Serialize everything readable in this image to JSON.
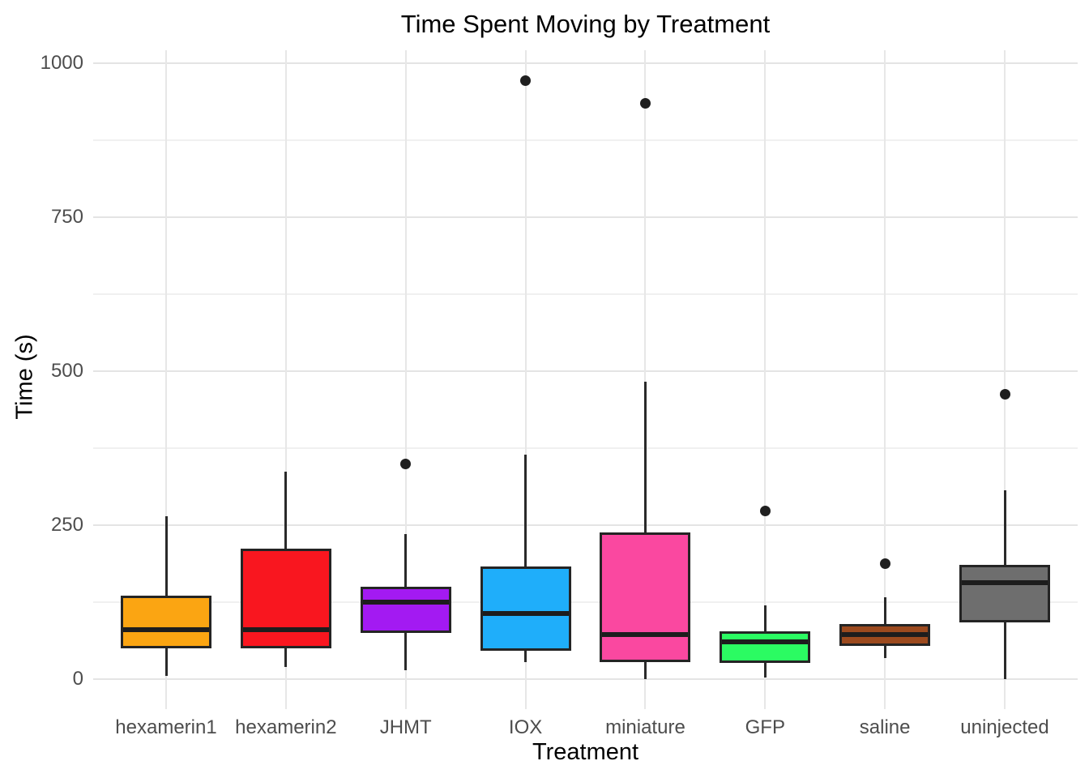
{
  "chart_data": {
    "type": "boxplot",
    "title": "Time Spent Moving by Treatment",
    "xlabel": "Treatment",
    "ylabel": "Time (s)",
    "ylim": [
      0,
      1000
    ],
    "yticks": [
      0,
      250,
      500,
      750,
      1000
    ],
    "yticks_minor": [
      125,
      375,
      625,
      875
    ],
    "grid": "horizontal major+minor lines, vertical major line per category, no panel border",
    "legend": "none",
    "categories": [
      "hexamerin1",
      "hexamerin2",
      "JHMT",
      "IOX",
      "miniature",
      "GFP",
      "saline",
      "uninjected"
    ],
    "series": [
      {
        "category": "hexamerin1",
        "fill": "#FBA512",
        "whisker_low": 5,
        "q1": 50,
        "median": 80,
        "q3": 135,
        "whisker_high": 265,
        "outliers": []
      },
      {
        "category": "hexamerin2",
        "fill": "#F9161F",
        "whisker_low": 20,
        "q1": 50,
        "median": 80,
        "q3": 212,
        "whisker_high": 337,
        "outliers": []
      },
      {
        "category": "JHMT",
        "fill": "#A31AF2",
        "whisker_low": 15,
        "q1": 75,
        "median": 125,
        "q3": 150,
        "whisker_high": 235,
        "outliers": [
          350
        ]
      },
      {
        "category": "IOX",
        "fill": "#1FAEFA",
        "whisker_low": 27,
        "q1": 46,
        "median": 107,
        "q3": 183,
        "whisker_high": 364,
        "outliers": [
          972
        ]
      },
      {
        "category": "miniature",
        "fill": "#FA48A0",
        "whisker_low": 0,
        "q1": 28,
        "median": 72,
        "q3": 238,
        "whisker_high": 483,
        "outliers": [
          935
        ]
      },
      {
        "category": "GFP",
        "fill": "#2BFB62",
        "whisker_low": 2,
        "q1": 26,
        "median": 60,
        "q3": 77,
        "whisker_high": 120,
        "outliers": [
          273
        ]
      },
      {
        "category": "saline",
        "fill": "#9C4A1E",
        "whisker_low": 34,
        "q1": 54,
        "median": 72,
        "q3": 90,
        "whisker_high": 133,
        "outliers": [
          188
        ]
      },
      {
        "category": "uninjected",
        "fill": "#6E6E6E",
        "whisker_low": 0,
        "q1": 92,
        "median": 157,
        "q3": 186,
        "whisker_high": 307,
        "outliers": [
          462
        ]
      }
    ]
  },
  "style": {
    "background": "#FFFFFF",
    "grid_major": "#E4E4E4",
    "grid_minor": "#F0F0F0",
    "box_border": "#242424",
    "median_color": "#1D1D1D",
    "whisker_color": "#2A2A2A",
    "outlier_color": "#1F1F1F",
    "tick_label_color": "#4D4D4D",
    "title_color": "#000000"
  }
}
